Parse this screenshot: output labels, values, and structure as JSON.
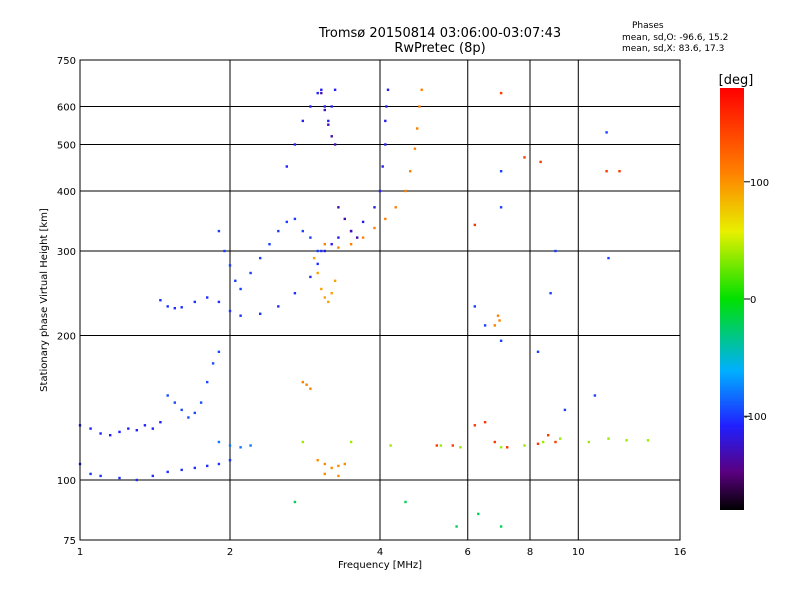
{
  "header": {
    "title_line1": "Tromsø 20150814 03:06:00-03:07:43",
    "title_line2": "RwPretec (8p)"
  },
  "phase_box": {
    "heading": "Phases",
    "o_line": "mean, sd,O: -96.6, 15.2",
    "x_line": "mean, sd,X:  83.6, 17.3"
  },
  "colorbar": {
    "unit": "[deg]",
    "ticks": [
      "100",
      "0",
      "-100"
    ],
    "tick_values": [
      100,
      0,
      -100
    ],
    "range": [
      -180,
      180
    ]
  },
  "chart_data": {
    "type": "scatter",
    "xlabel": "Frequency [MHz]",
    "ylabel": "Stationary phase Virtual Height [km]",
    "xscale": "log",
    "yscale": "log",
    "xlim": [
      1,
      16
    ],
    "ylim": [
      75,
      750
    ],
    "x_ticks": [
      1,
      2,
      4,
      6,
      8,
      10,
      16
    ],
    "x_tick_labels": [
      "1",
      "2",
      "4",
      "6",
      "8",
      "10",
      "16"
    ],
    "y_ticks": [
      75,
      100,
      200,
      300,
      400,
      500,
      600,
      750
    ],
    "y_tick_labels": [
      "75",
      "100",
      "200",
      "300",
      "400",
      "500",
      "600",
      "750"
    ],
    "grid": true,
    "color_encoding": "phase [deg]",
    "series": [
      {
        "points": [
          [
            1.0,
            130
          ],
          [
            1.05,
            128
          ],
          [
            1.1,
            125
          ],
          [
            1.15,
            124
          ],
          [
            1.2,
            126
          ],
          [
            1.25,
            128
          ],
          [
            1.3,
            127
          ],
          [
            1.35,
            130
          ],
          [
            1.4,
            128
          ],
          [
            1.45,
            132
          ]
        ],
        "phase": -110
      },
      {
        "points": [
          [
            1.0,
            108
          ],
          [
            1.05,
            103
          ],
          [
            1.1,
            102
          ],
          [
            1.2,
            101
          ],
          [
            1.3,
            100
          ],
          [
            1.4,
            102
          ],
          [
            1.5,
            104
          ],
          [
            1.6,
            105
          ],
          [
            1.7,
            106
          ],
          [
            1.8,
            107
          ],
          [
            1.9,
            108
          ],
          [
            2.0,
            110
          ]
        ],
        "phase": -105
      },
      {
        "points": [
          [
            1.5,
            150
          ],
          [
            1.55,
            145
          ],
          [
            1.6,
            140
          ],
          [
            1.65,
            135
          ],
          [
            1.7,
            138
          ],
          [
            1.75,
            145
          ],
          [
            1.8,
            160
          ],
          [
            1.85,
            175
          ],
          [
            1.9,
            185
          ]
        ],
        "phase": -95
      },
      {
        "points": [
          [
            1.9,
            120
          ],
          [
            2.0,
            118
          ],
          [
            2.1,
            117
          ],
          [
            2.2,
            118
          ]
        ],
        "phase": -80
      },
      {
        "points": [
          [
            1.45,
            237
          ],
          [
            1.5,
            230
          ],
          [
            1.55,
            228
          ],
          [
            1.6,
            229
          ],
          [
            1.7,
            235
          ],
          [
            1.8,
            240
          ],
          [
            1.9,
            235
          ],
          [
            2.0,
            225
          ],
          [
            2.1,
            220
          ],
          [
            2.3,
            222
          ],
          [
            2.5,
            230
          ],
          [
            2.7,
            245
          ],
          [
            2.9,
            265
          ],
          [
            3.0,
            282
          ],
          [
            3.05,
            300
          ]
        ],
        "phase": -105
      },
      {
        "points": [
          [
            1.9,
            330
          ],
          [
            1.95,
            300
          ],
          [
            2.0,
            280
          ],
          [
            2.05,
            260
          ],
          [
            2.1,
            250
          ],
          [
            2.2,
            270
          ],
          [
            2.3,
            290
          ],
          [
            2.4,
            310
          ],
          [
            2.5,
            330
          ],
          [
            2.6,
            345
          ],
          [
            2.7,
            350
          ],
          [
            2.8,
            330
          ],
          [
            2.9,
            320
          ],
          [
            3.0,
            300
          ]
        ],
        "phase": -100
      },
      {
        "points": [
          [
            2.6,
            450
          ],
          [
            2.7,
            500
          ],
          [
            2.8,
            560
          ],
          [
            2.9,
            600
          ],
          [
            3.0,
            640
          ],
          [
            3.05,
            650
          ],
          [
            3.1,
            600
          ],
          [
            3.15,
            560
          ],
          [
            3.2,
            600
          ],
          [
            3.25,
            650
          ]
        ],
        "phase": -110
      },
      {
        "points": [
          [
            3.05,
            640
          ],
          [
            3.1,
            590
          ],
          [
            3.15,
            550
          ],
          [
            3.2,
            520
          ],
          [
            3.25,
            500
          ]
        ],
        "phase": -135
      },
      {
        "points": [
          [
            3.1,
            300
          ],
          [
            3.2,
            310
          ],
          [
            3.3,
            320
          ],
          [
            3.5,
            330
          ],
          [
            3.7,
            345
          ],
          [
            3.9,
            370
          ],
          [
            4.0,
            400
          ],
          [
            4.05,
            450
          ],
          [
            4.1,
            500
          ],
          [
            4.1,
            560
          ],
          [
            4.12,
            600
          ],
          [
            4.15,
            650
          ]
        ],
        "phase": -115
      },
      {
        "points": [
          [
            3.3,
            370
          ],
          [
            3.4,
            350
          ],
          [
            3.5,
            330
          ],
          [
            3.6,
            320
          ]
        ],
        "phase": -135
      },
      {
        "points": [
          [
            3.1,
            310
          ],
          [
            3.3,
            305
          ],
          [
            3.5,
            310
          ],
          [
            3.7,
            320
          ],
          [
            3.9,
            335
          ],
          [
            4.1,
            350
          ],
          [
            4.3,
            370
          ],
          [
            4.5,
            400
          ],
          [
            4.6,
            440
          ],
          [
            4.7,
            490
          ],
          [
            4.75,
            540
          ],
          [
            4.8,
            600
          ],
          [
            4.85,
            650
          ]
        ],
        "phase": 110
      },
      {
        "points": [
          [
            2.95,
            290
          ],
          [
            3.0,
            270
          ],
          [
            3.05,
            250
          ],
          [
            3.1,
            240
          ],
          [
            3.15,
            235
          ],
          [
            3.2,
            245
          ],
          [
            3.25,
            260
          ]
        ],
        "phase": 95
      },
      {
        "points": [
          [
            3.0,
            110
          ],
          [
            3.1,
            108
          ],
          [
            3.2,
            106
          ],
          [
            3.3,
            107
          ],
          [
            3.4,
            108
          ],
          [
            3.1,
            103
          ],
          [
            3.3,
            102
          ]
        ],
        "phase": 105
      },
      {
        "points": [
          [
            2.8,
            160
          ],
          [
            2.85,
            158
          ],
          [
            2.9,
            155
          ]
        ],
        "phase": 110
      },
      {
        "points": [
          [
            2.8,
            120
          ],
          [
            3.5,
            120
          ],
          [
            4.2,
            118
          ],
          [
            5.3,
            118
          ],
          [
            5.8,
            117
          ],
          [
            7.0,
            117
          ],
          [
            7.8,
            118
          ],
          [
            8.5,
            120
          ],
          [
            9.2,
            122
          ],
          [
            10.5,
            120
          ],
          [
            11.5,
            122
          ],
          [
            12.5,
            121
          ],
          [
            13.8,
            121
          ]
        ],
        "phase": 40
      },
      {
        "points": [
          [
            5.2,
            118
          ],
          [
            5.6,
            118
          ],
          [
            6.2,
            130
          ],
          [
            6.5,
            132
          ],
          [
            6.8,
            120
          ],
          [
            7.2,
            117
          ],
          [
            8.3,
            119
          ],
          [
            8.7,
            124
          ],
          [
            9.0,
            120
          ]
        ],
        "phase": 150
      },
      {
        "points": [
          [
            6.2,
            340
          ],
          [
            7.0,
            640
          ],
          [
            7.8,
            470
          ],
          [
            8.4,
            460
          ],
          [
            11.4,
            440
          ],
          [
            12.1,
            440
          ]
        ],
        "phase": 150
      },
      {
        "points": [
          [
            6.2,
            230
          ],
          [
            6.5,
            210
          ],
          [
            7.0,
            195
          ],
          [
            7.0,
            440
          ],
          [
            7.0,
            370
          ],
          [
            8.8,
            245
          ],
          [
            9.0,
            300
          ],
          [
            8.3,
            185
          ],
          [
            9.4,
            140
          ],
          [
            10.8,
            150
          ],
          [
            11.5,
            290
          ],
          [
            11.4,
            530
          ]
        ],
        "phase": -100
      },
      {
        "points": [
          [
            6.8,
            210
          ],
          [
            6.9,
            220
          ],
          [
            6.95,
            215
          ]
        ],
        "phase": 110
      },
      {
        "points": [
          [
            5.7,
            80
          ],
          [
            4.5,
            90
          ],
          [
            2.7,
            90
          ],
          [
            6.3,
            85
          ],
          [
            7.0,
            80
          ]
        ],
        "phase": -20
      }
    ]
  }
}
